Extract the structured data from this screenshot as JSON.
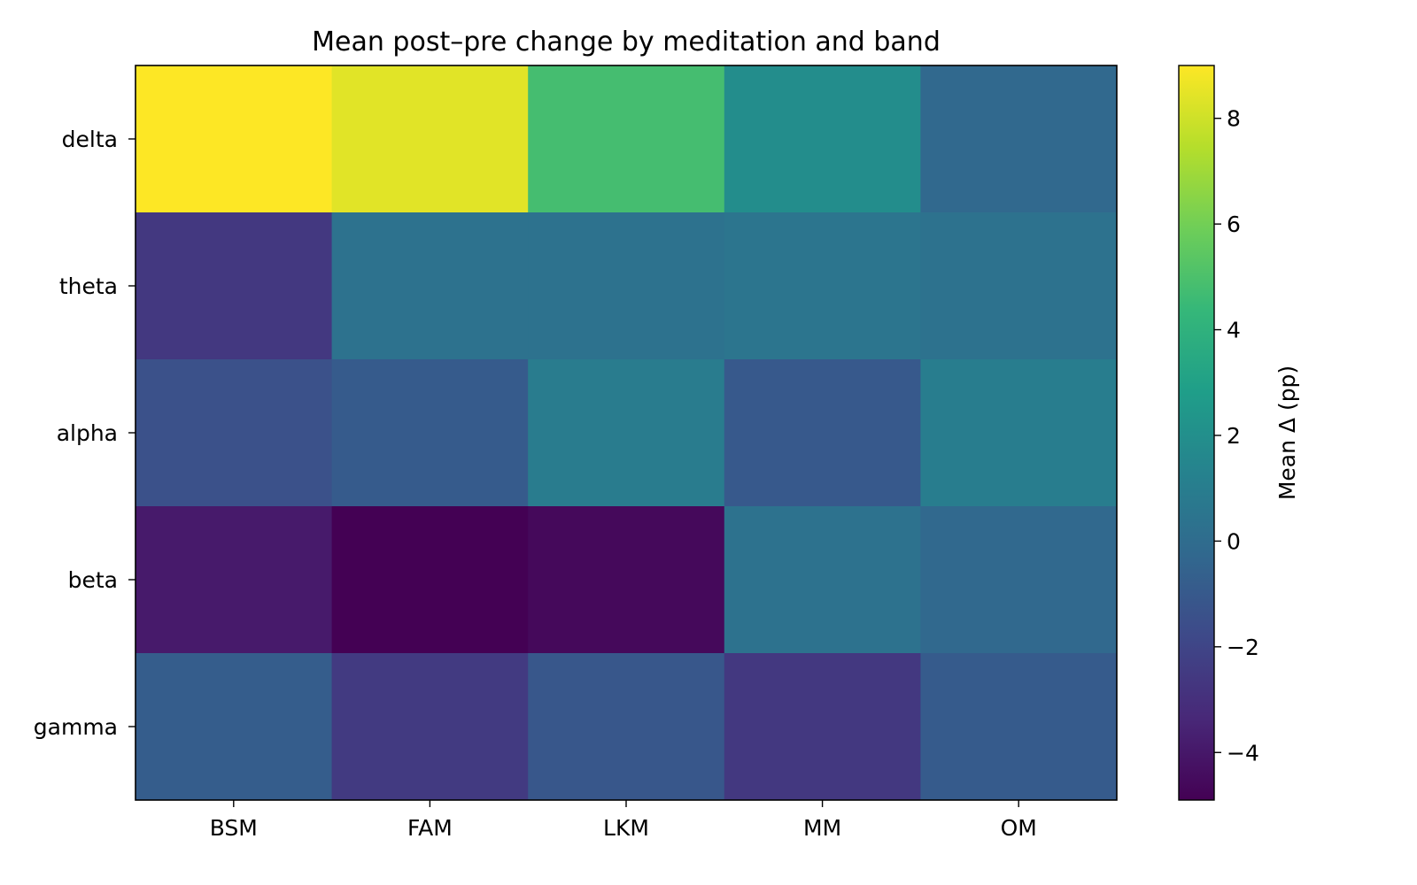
{
  "chart_data": {
    "type": "heatmap",
    "title": "Mean post–pre change by meditation and band",
    "x_categories": [
      "BSM",
      "FAM",
      "LKM",
      "MM",
      "OM"
    ],
    "y_categories": [
      "delta",
      "theta",
      "alpha",
      "beta",
      "gamma"
    ],
    "values": [
      [
        9.0,
        8.4,
        4.8,
        1.9,
        -0.2
      ],
      [
        -2.6,
        0.3,
        0.3,
        0.5,
        0.3
      ],
      [
        -1.4,
        -0.9,
        0.9,
        -1.0,
        1.0
      ],
      [
        -3.9,
        -4.9,
        -4.6,
        0.3,
        -0.2
      ],
      [
        -0.8,
        -2.5,
        -1.1,
        -2.6,
        -0.9
      ]
    ],
    "colorbar": {
      "label": "Mean Δ (pp)",
      "range": [
        -4.9,
        9.0
      ],
      "ticks": [
        8,
        6,
        4,
        2,
        0,
        -2,
        -4
      ],
      "tick_labels": [
        "8",
        "6",
        "4",
        "2",
        "0",
        "−2",
        "−4"
      ]
    },
    "colormap": "viridis",
    "viridis_stops": [
      "#440154",
      "#482878",
      "#3e4989",
      "#31688e",
      "#26828e",
      "#1f9e89",
      "#35b779",
      "#6ece58",
      "#b5de2b",
      "#fde725"
    ]
  }
}
